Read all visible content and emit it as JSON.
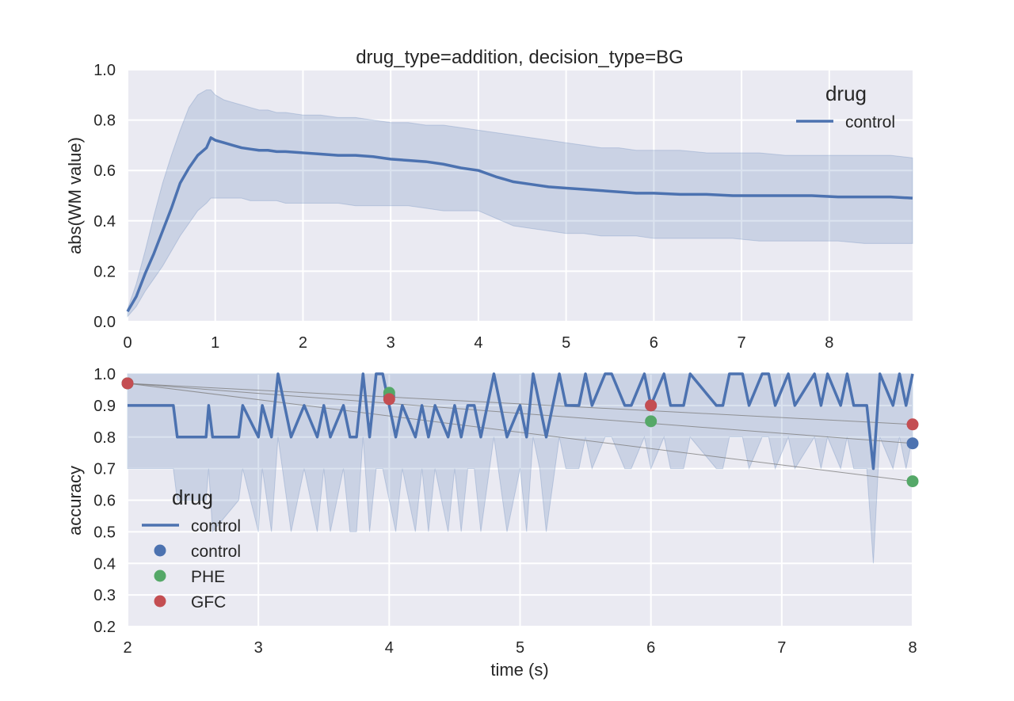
{
  "colors": {
    "background": "#EAEAF2",
    "grid": "#FFFFFF",
    "series_blue": "#4C72B0",
    "series_green": "#55A868",
    "series_red": "#C44E52",
    "band": "#4C72B0",
    "trend": "#808080"
  },
  "chart_data": [
    {
      "type": "line",
      "title": "drug_type=addition, decision_type=BG",
      "xlabel": "",
      "ylabel": "abs(WM value)",
      "xlim": [
        0,
        8.95
      ],
      "ylim": [
        0,
        1.0
      ],
      "xticks": [
        "0",
        "1",
        "2",
        "3",
        "4",
        "5",
        "6",
        "7",
        "8"
      ],
      "yticks": [
        "0.0",
        "0.2",
        "0.4",
        "0.6",
        "0.8",
        "1.0"
      ],
      "grid": true,
      "legend": {
        "title": "drug",
        "position": "top-right",
        "entries": [
          "control"
        ]
      },
      "series": [
        {
          "name": "control",
          "x": [
            0.0,
            0.1,
            0.2,
            0.3,
            0.4,
            0.5,
            0.6,
            0.7,
            0.8,
            0.9,
            0.95,
            1.0,
            1.1,
            1.2,
            1.3,
            1.4,
            1.5,
            1.6,
            1.7,
            1.8,
            2.0,
            2.2,
            2.4,
            2.6,
            2.8,
            3.0,
            3.2,
            3.4,
            3.6,
            3.8,
            4.0,
            4.2,
            4.4,
            4.6,
            4.8,
            5.0,
            5.2,
            5.4,
            5.6,
            5.8,
            6.0,
            6.3,
            6.6,
            6.9,
            7.2,
            7.5,
            7.8,
            8.1,
            8.4,
            8.7,
            8.95
          ],
          "y": [
            0.04,
            0.1,
            0.19,
            0.27,
            0.36,
            0.45,
            0.55,
            0.61,
            0.66,
            0.69,
            0.73,
            0.72,
            0.71,
            0.7,
            0.69,
            0.685,
            0.68,
            0.68,
            0.675,
            0.675,
            0.67,
            0.665,
            0.66,
            0.66,
            0.655,
            0.645,
            0.64,
            0.635,
            0.625,
            0.61,
            0.6,
            0.575,
            0.555,
            0.545,
            0.535,
            0.53,
            0.525,
            0.52,
            0.515,
            0.51,
            0.51,
            0.505,
            0.505,
            0.5,
            0.5,
            0.5,
            0.5,
            0.495,
            0.495,
            0.495,
            0.49
          ],
          "band_upper": [
            0.05,
            0.15,
            0.28,
            0.42,
            0.55,
            0.66,
            0.76,
            0.85,
            0.9,
            0.92,
            0.92,
            0.9,
            0.88,
            0.87,
            0.86,
            0.85,
            0.84,
            0.84,
            0.83,
            0.83,
            0.82,
            0.82,
            0.81,
            0.81,
            0.8,
            0.79,
            0.79,
            0.78,
            0.78,
            0.77,
            0.76,
            0.75,
            0.74,
            0.73,
            0.72,
            0.71,
            0.7,
            0.69,
            0.69,
            0.68,
            0.68,
            0.68,
            0.67,
            0.67,
            0.67,
            0.66,
            0.66,
            0.66,
            0.66,
            0.66,
            0.65
          ],
          "band_lower": [
            0.02,
            0.06,
            0.12,
            0.17,
            0.22,
            0.28,
            0.34,
            0.39,
            0.44,
            0.47,
            0.49,
            0.49,
            0.49,
            0.49,
            0.49,
            0.48,
            0.48,
            0.48,
            0.48,
            0.47,
            0.47,
            0.47,
            0.47,
            0.46,
            0.46,
            0.46,
            0.46,
            0.45,
            0.44,
            0.44,
            0.44,
            0.41,
            0.38,
            0.37,
            0.36,
            0.35,
            0.35,
            0.34,
            0.34,
            0.34,
            0.33,
            0.33,
            0.33,
            0.33,
            0.32,
            0.32,
            0.32,
            0.32,
            0.31,
            0.31,
            0.31
          ]
        }
      ]
    },
    {
      "type": "line",
      "title": "",
      "xlabel": "time (s)",
      "ylabel": "accuracy",
      "xlim": [
        2,
        8
      ],
      "ylim": [
        0.2,
        1.0
      ],
      "xticks": [
        "2",
        "3",
        "4",
        "5",
        "6",
        "7",
        "8"
      ],
      "yticks": [
        "0.2",
        "0.3",
        "0.4",
        "0.5",
        "0.6",
        "0.7",
        "0.8",
        "0.9",
        "1.0"
      ],
      "grid": true,
      "legend": {
        "title": "drug",
        "position": "lower-left",
        "entries": [
          "control",
          "control",
          "PHE",
          "GFC"
        ]
      },
      "series": [
        {
          "name": "control",
          "x": [
            2.0,
            2.35,
            2.38,
            2.6,
            2.62,
            2.65,
            2.85,
            2.88,
            3.0,
            3.03,
            3.1,
            3.15,
            3.25,
            3.35,
            3.45,
            3.5,
            3.55,
            3.65,
            3.7,
            3.75,
            3.8,
            3.85,
            3.9,
            3.95,
            4.05,
            4.1,
            4.2,
            4.25,
            4.3,
            4.35,
            4.45,
            4.5,
            4.55,
            4.6,
            4.65,
            4.7,
            4.8,
            4.9,
            5.0,
            5.05,
            5.1,
            5.15,
            5.2,
            5.3,
            5.35,
            5.45,
            5.5,
            5.55,
            5.65,
            5.7,
            5.8,
            5.85,
            5.95,
            6.0,
            6.1,
            6.15,
            6.25,
            6.3,
            6.5,
            6.55,
            6.6,
            6.7,
            6.75,
            6.85,
            6.9,
            6.95,
            7.05,
            7.1,
            7.25,
            7.3,
            7.35,
            7.45,
            7.5,
            7.55,
            7.65,
            7.7,
            7.75,
            7.85,
            7.9,
            7.95,
            8.0
          ],
          "y": [
            0.9,
            0.9,
            0.8,
            0.8,
            0.9,
            0.8,
            0.8,
            0.9,
            0.8,
            0.9,
            0.8,
            1.0,
            0.8,
            0.9,
            0.8,
            0.9,
            0.8,
            0.9,
            0.8,
            0.8,
            1.0,
            0.8,
            1.0,
            1.0,
            0.8,
            0.9,
            0.8,
            0.9,
            0.8,
            0.9,
            0.8,
            0.9,
            0.8,
            0.9,
            0.9,
            0.8,
            1.0,
            0.8,
            0.9,
            0.8,
            1.0,
            0.9,
            0.8,
            1.0,
            0.9,
            0.9,
            1.0,
            0.9,
            1.0,
            1.0,
            0.9,
            0.9,
            1.0,
            0.9,
            1.0,
            0.9,
            0.9,
            1.0,
            0.9,
            0.9,
            1.0,
            1.0,
            0.9,
            1.0,
            1.0,
            0.9,
            1.0,
            0.9,
            1.0,
            0.9,
            1.0,
            0.9,
            1.0,
            0.9,
            0.9,
            0.7,
            1.0,
            0.9,
            1.0,
            0.9,
            1.0
          ],
          "band_upper": [
            1.0,
            1.0,
            1.0,
            1.0,
            1.0,
            1.0,
            1.0,
            1.0,
            1.0,
            1.0,
            1.0,
            1.0,
            1.0,
            1.0,
            1.0,
            1.0,
            1.0,
            1.0,
            1.0,
            1.0,
            1.0,
            1.0,
            1.0,
            1.0,
            1.0,
            1.0,
            1.0,
            1.0,
            1.0,
            1.0,
            1.0,
            1.0,
            1.0,
            1.0,
            1.0,
            1.0,
            1.0,
            1.0,
            1.0,
            1.0,
            1.0,
            1.0,
            1.0,
            1.0,
            1.0,
            1.0,
            1.0,
            1.0,
            1.0,
            1.0,
            1.0,
            1.0,
            1.0,
            1.0,
            1.0,
            1.0,
            1.0,
            1.0,
            1.0,
            1.0,
            1.0,
            1.0,
            1.0,
            1.0,
            1.0,
            1.0,
            1.0,
            1.0,
            1.0,
            1.0,
            1.0,
            1.0,
            1.0,
            1.0,
            1.0,
            1.0,
            1.0,
            1.0,
            1.0,
            1.0,
            1.0
          ],
          "band_lower": [
            0.7,
            0.7,
            0.6,
            0.6,
            0.7,
            0.5,
            0.6,
            0.7,
            0.5,
            0.7,
            0.5,
            0.8,
            0.5,
            0.7,
            0.5,
            0.7,
            0.5,
            0.7,
            0.5,
            0.5,
            0.8,
            0.5,
            0.7,
            0.7,
            0.5,
            0.7,
            0.5,
            0.7,
            0.5,
            0.7,
            0.5,
            0.7,
            0.5,
            0.7,
            0.7,
            0.5,
            0.8,
            0.5,
            0.7,
            0.5,
            0.8,
            0.7,
            0.5,
            0.8,
            0.7,
            0.7,
            0.8,
            0.7,
            0.8,
            0.8,
            0.7,
            0.7,
            0.8,
            0.7,
            0.8,
            0.7,
            0.7,
            0.8,
            0.7,
            0.7,
            0.8,
            0.8,
            0.7,
            0.8,
            0.8,
            0.7,
            0.8,
            0.7,
            0.8,
            0.7,
            0.8,
            0.7,
            0.8,
            0.7,
            0.7,
            0.4,
            0.8,
            0.7,
            0.8,
            0.7,
            0.8
          ]
        },
        {
          "name": "control",
          "marker": "o",
          "x": [
            2,
            4,
            6,
            8
          ],
          "y": [
            0.97,
            0.93,
            0.9,
            0.78
          ]
        },
        {
          "name": "PHE",
          "marker": "o",
          "x": [
            2,
            4,
            6,
            8
          ],
          "y": [
            0.97,
            0.94,
            0.85,
            0.66
          ]
        },
        {
          "name": "GFC",
          "marker": "o",
          "x": [
            2,
            4,
            6,
            8
          ],
          "y": [
            0.97,
            0.92,
            0.9,
            0.84
          ]
        }
      ]
    }
  ]
}
